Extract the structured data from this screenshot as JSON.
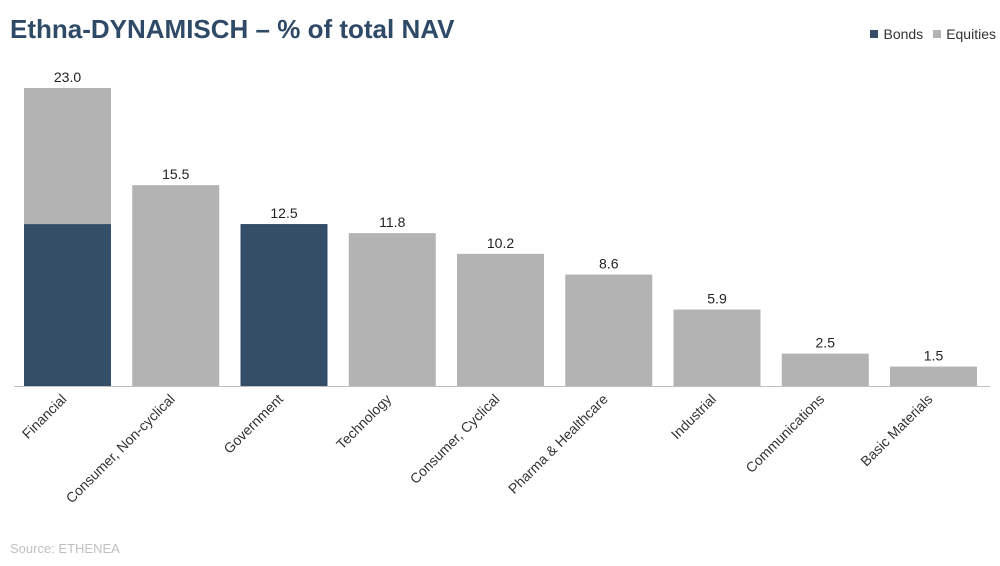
{
  "chart_data": {
    "type": "bar",
    "stacked": true,
    "title": "Ethna-DYNAMISCH – % of total NAV",
    "categories": [
      "Financial",
      "Consumer, Non-cyclical",
      "Government",
      "Technology",
      "Consumer, Cyclical",
      "Pharma & Healthcare",
      "Industrial",
      "Communications",
      "Basic Materials"
    ],
    "series": [
      {
        "name": "Bonds",
        "color": "#344e68",
        "values": [
          12.5,
          0,
          12.5,
          0,
          0,
          0,
          0,
          0,
          0
        ]
      },
      {
        "name": "Equities",
        "color": "#b3b3b3",
        "values": [
          10.5,
          15.5,
          0,
          11.8,
          10.2,
          8.6,
          5.9,
          2.5,
          1.5
        ]
      }
    ],
    "totals": [
      "23.0",
      "15.5",
      "12.5",
      "11.8",
      "10.2",
      "8.6",
      "5.9",
      "2.5",
      "1.5"
    ],
    "ylim": [
      0,
      23
    ],
    "grid": false,
    "legend_position": "top-right",
    "xlabel": "",
    "ylabel": ""
  },
  "legend": {
    "bonds_label": "Bonds",
    "equities_label": "Equities"
  },
  "footer": {
    "source": "Source: ETHENEA"
  }
}
